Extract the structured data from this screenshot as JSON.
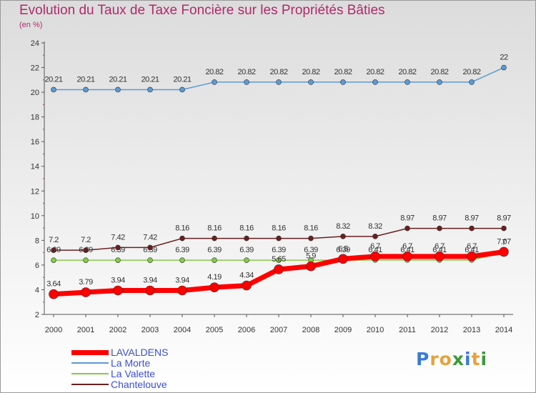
{
  "header": {
    "title": "Evolution du Taux de Taxe Foncière sur les Propriétés Bâties",
    "subtitle": "(en %)"
  },
  "logo": {
    "letters": [
      "P",
      "r",
      "o",
      "x",
      "i",
      "t",
      "i"
    ],
    "colors": [
      "#3a7bd5",
      "#e8a23a",
      "#e8a23a",
      "#3a9a3a",
      "#3a7bd5",
      "#e8a23a",
      "#3a9a3a"
    ]
  },
  "chart_data": {
    "type": "line",
    "title": "Evolution du Taux de Taxe Foncière sur les Propriétés Bâties",
    "subtitle": "(en %)",
    "x": [
      "2000",
      "2001",
      "2002",
      "2003",
      "2004",
      "2005",
      "2006",
      "2007",
      "2008",
      "2009",
      "2010",
      "2011",
      "2012",
      "2013",
      "2014"
    ],
    "y_ticks": [
      2,
      4,
      6,
      8,
      10,
      12,
      14,
      16,
      18,
      20,
      22,
      24
    ],
    "ylim": [
      2,
      24
    ],
    "grid": false,
    "legend_position": "bottom-left",
    "series": [
      {
        "name": "La Morte",
        "color": "#5b9bd5",
        "values": [
          20.21,
          20.21,
          20.21,
          20.21,
          20.21,
          20.82,
          20.82,
          20.82,
          20.82,
          20.82,
          20.82,
          20.82,
          20.82,
          20.82,
          22
        ],
        "labels": [
          "20.21",
          "20.21",
          "20.21",
          "20.21",
          "20.21",
          "20.82",
          "20.82",
          "20.82",
          "20.82",
          "20.82",
          "20.82",
          "20.82",
          "20.82",
          "20.82",
          "22"
        ]
      },
      {
        "name": "Chantelouve",
        "color": "#6b1f1f",
        "values": [
          7.2,
          7.2,
          7.42,
          7.42,
          8.16,
          8.16,
          8.16,
          8.16,
          8.16,
          8.32,
          8.32,
          8.97,
          8.97,
          8.97,
          8.97
        ],
        "labels": [
          "7.2",
          "7.2",
          "7.42",
          "7.42",
          "8.16",
          "8.16",
          "8.16",
          "8.16",
          "8.16",
          "8.32",
          "8.32",
          "8.97",
          "8.97",
          "8.97",
          "8.97"
        ]
      },
      {
        "name": "La Valette",
        "color": "#86c947",
        "values": [
          6.39,
          6.39,
          6.39,
          6.39,
          6.39,
          6.39,
          6.39,
          6.39,
          6.39,
          6.39,
          6.41,
          6.41,
          6.41,
          6.41,
          7
        ],
        "labels": [
          "6.39",
          "6.39",
          "6.39",
          "6.39",
          "6.39",
          "6.39",
          "6.39",
          "6.39",
          "6.39",
          "6.39",
          "6.41",
          "6.41",
          "6.41",
          "6.41",
          "7"
        ]
      },
      {
        "name": "LAVALDENS",
        "color": "#ff0000",
        "values": [
          3.64,
          3.79,
          3.94,
          3.94,
          3.94,
          4.19,
          4.34,
          5.65,
          5.9,
          6.5,
          6.7,
          6.7,
          6.7,
          6.7,
          7.07
        ],
        "labels": [
          "3.64",
          "3.79",
          "3.94",
          "3.94",
          "3.94",
          "4.19",
          "4.34",
          "5.65",
          "5.9",
          "6.5",
          "6.7",
          "6.7",
          "6.7",
          "6.7",
          "7.07"
        ]
      }
    ],
    "legend": [
      "LAVALDENS",
      "La Morte",
      "La Valette",
      "Chantelouve"
    ]
  }
}
